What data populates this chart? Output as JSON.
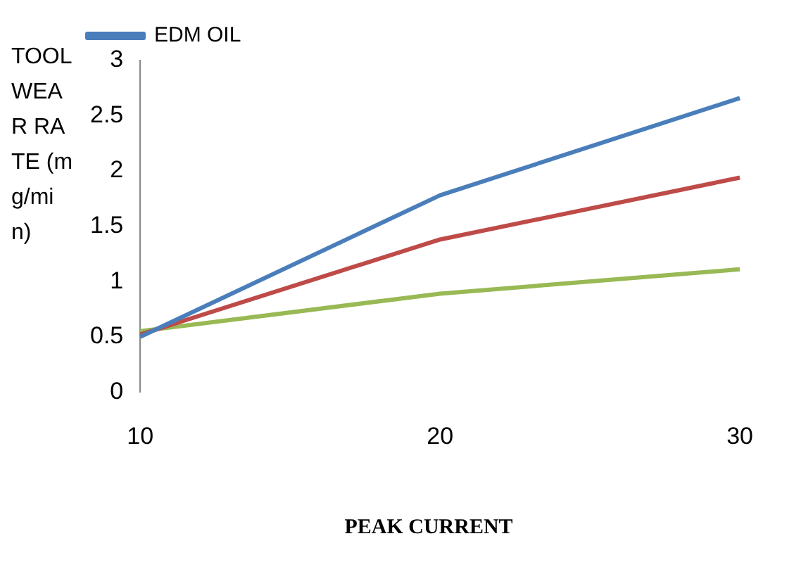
{
  "chart_data": {
    "type": "line",
    "xlabel": "PEAK CURRENT",
    "ylabel": "TOOL WEAR RATE (mg/min)",
    "categories": [
      "10",
      "20",
      "30"
    ],
    "series": [
      {
        "name": "EDM OIL",
        "color": "#4a7ebb",
        "values": [
          0.5,
          1.78,
          2.66
        ]
      },
      {
        "color": "#be4b48",
        "values": [
          0.52,
          1.38,
          1.94
        ]
      },
      {
        "color": "#98b954",
        "values": [
          0.55,
          0.89,
          1.11
        ]
      }
    ],
    "ylim": [
      0,
      3
    ],
    "yticks": [
      0,
      0.5,
      1,
      1.5,
      2,
      2.5,
      3
    ],
    "grid": false,
    "legend": "top left",
    "marker": "none",
    "line_style": "solid"
  }
}
